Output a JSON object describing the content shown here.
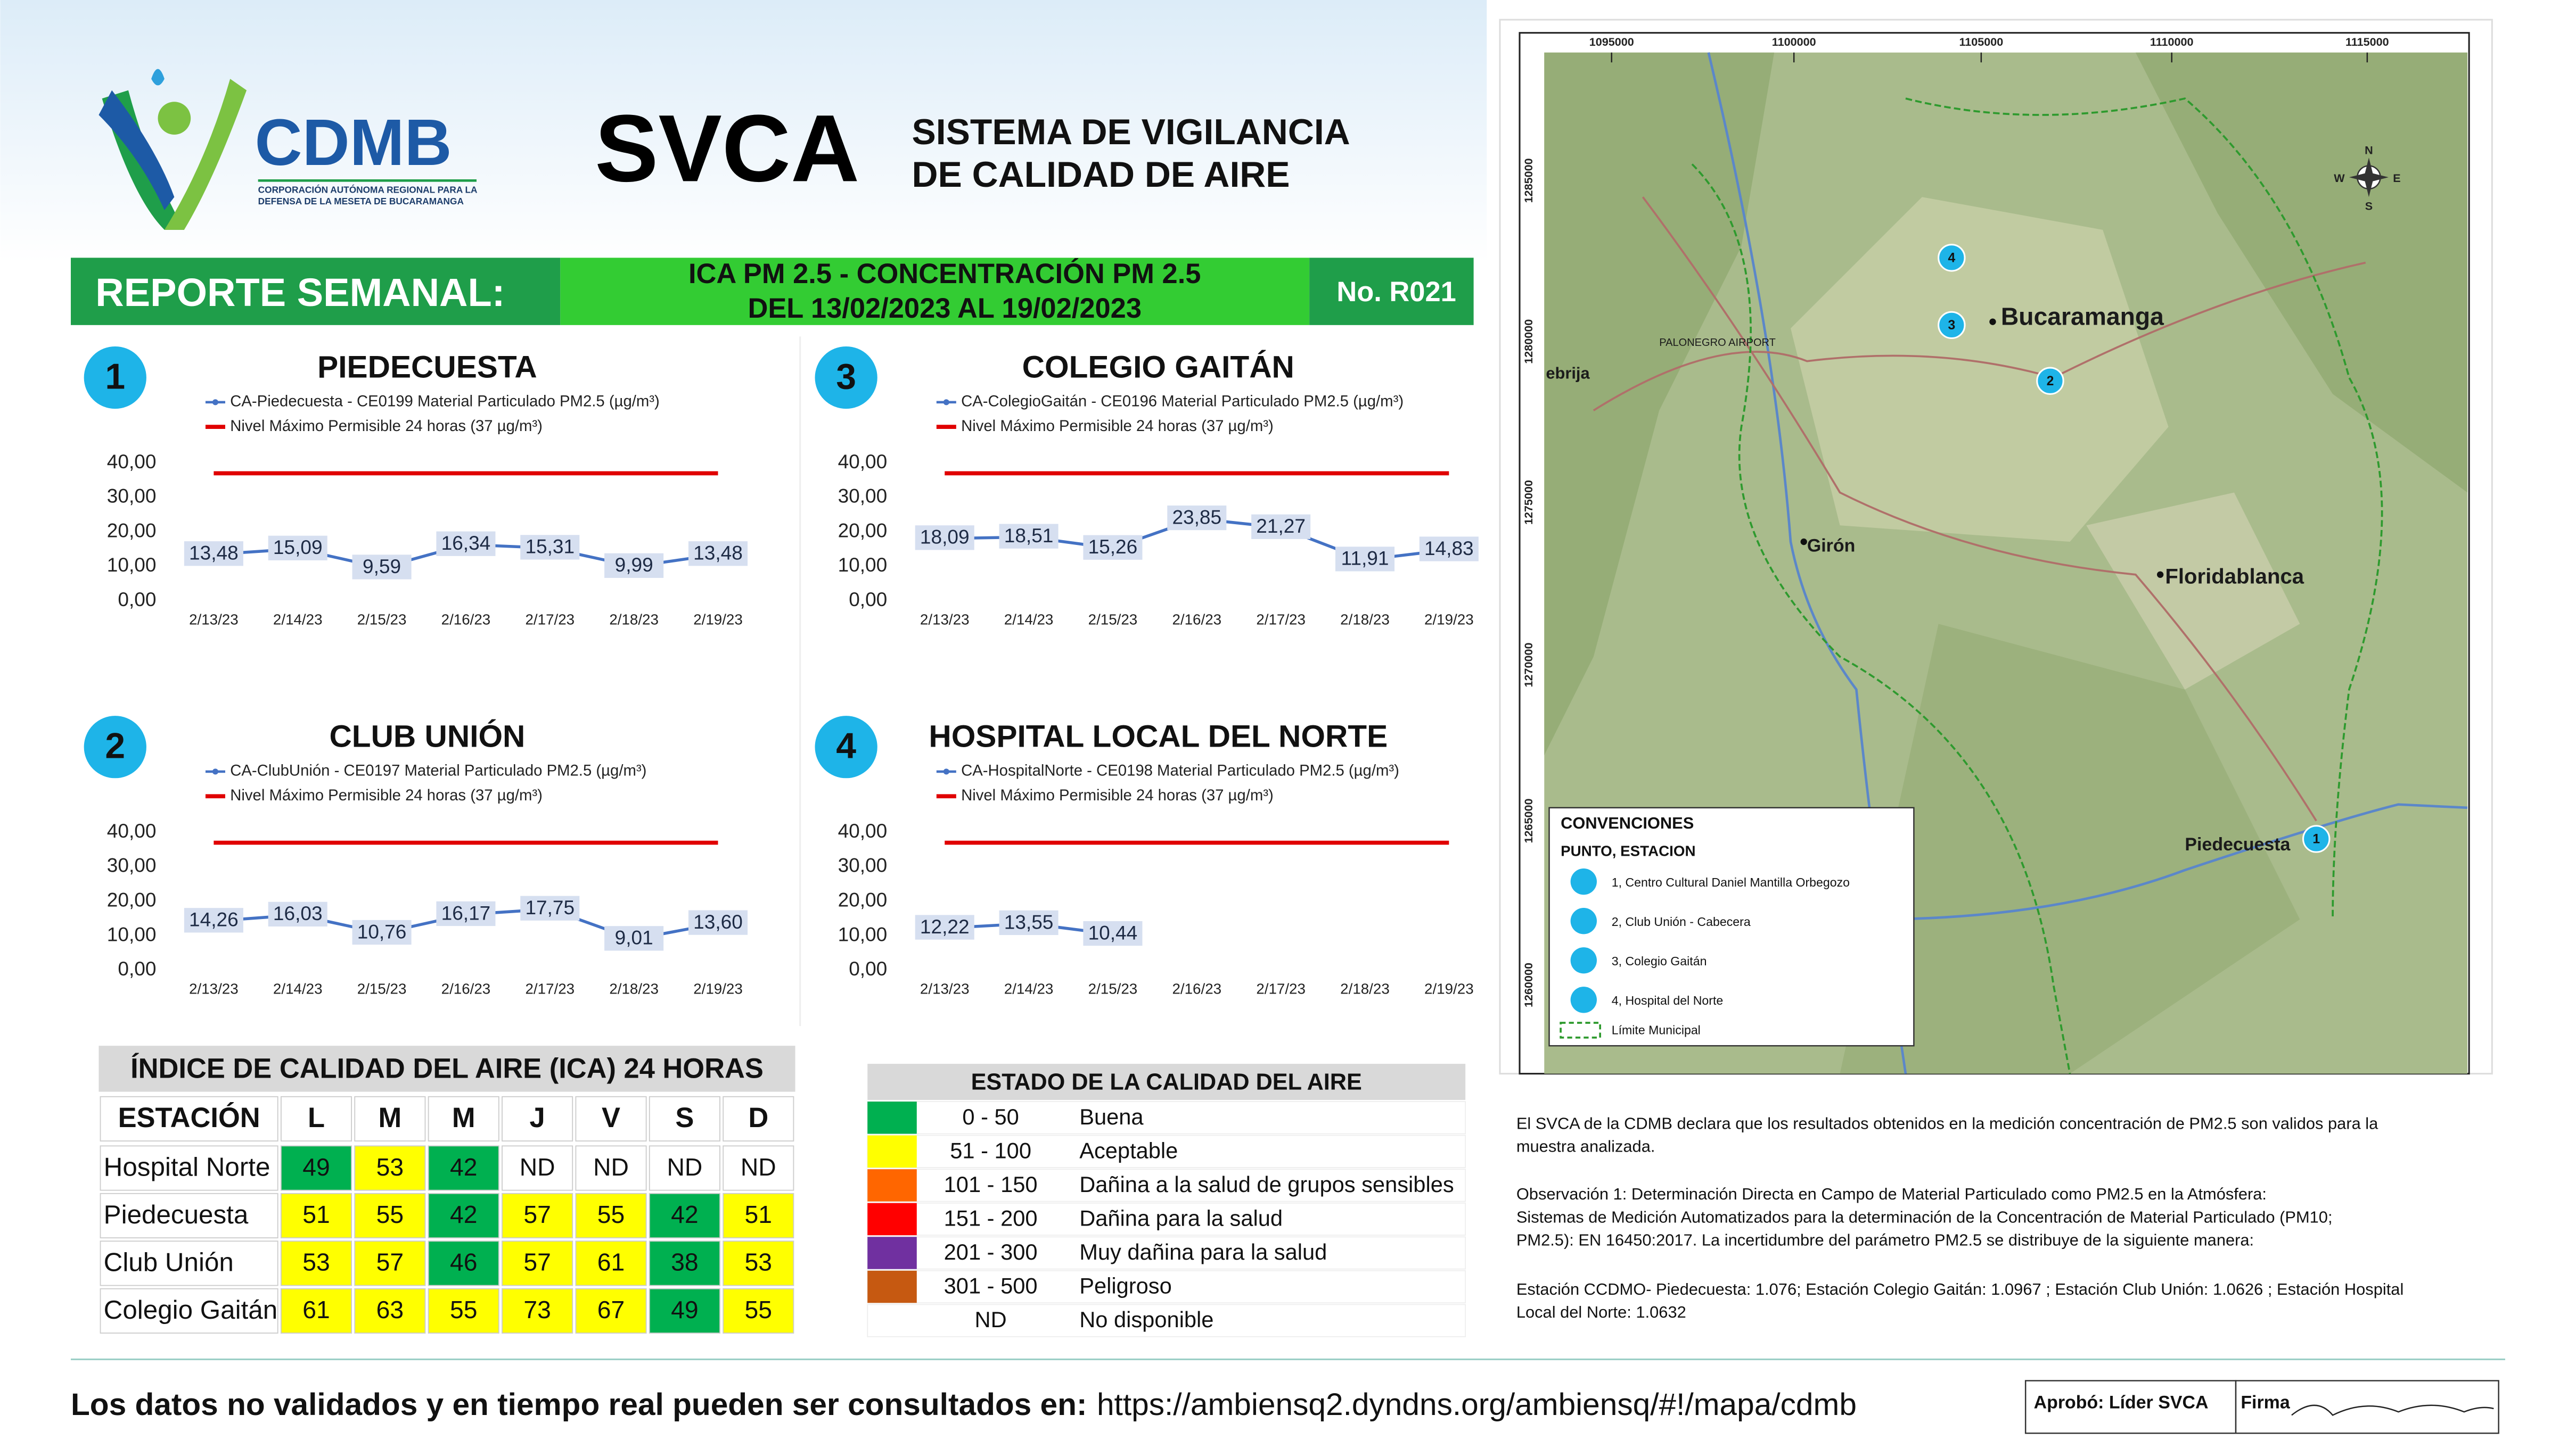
{
  "header": {
    "org": "CDMB",
    "org_subtitle_1": "CORPORACIÓN AUTÓNOMA REGIONAL PARA LA",
    "org_subtitle_2": "DEFENSA DE LA MESETA DE BUCARAMANGA",
    "title": "SVCA",
    "subtitle_1": "SISTEMA DE VIGILANCIA",
    "subtitle_2": "DE CALIDAD DE AIRE"
  },
  "banner": {
    "label": "REPORTE SEMANAL:",
    "line_1": "ICA PM 2.5 - CONCENTRACIÓN PM 2.5",
    "line_2": "DEL 13/02/2023 AL 19/02/2023",
    "number": "No. R021"
  },
  "chart_data": [
    {
      "type": "line",
      "number": "1",
      "title": "PIEDECUESTA",
      "categories": [
        "2/13/23",
        "2/14/23",
        "2/15/23",
        "2/16/23",
        "2/17/23",
        "2/18/23",
        "2/19/23"
      ],
      "series": [
        {
          "name": "CA-Piedecuesta - CE0199 Material Particulado PM2.5 (µg/m³)",
          "color": "#4472c4",
          "values": [
            13.48,
            15.09,
            9.59,
            16.34,
            15.31,
            9.99,
            13.48
          ],
          "value_labels": [
            "13,48",
            "15,09",
            "9,59",
            "16,34",
            "15,31",
            "9,99",
            "13,48"
          ]
        },
        {
          "name": "Nivel Máximo Permisible 24 horas (37 µg/m³)",
          "color": "#e00000",
          "values": [
            37,
            37,
            37,
            37,
            37,
            37,
            37
          ]
        }
      ],
      "ylim": [
        0,
        40
      ],
      "yticks": [
        {
          "value": 0,
          "label": "0,00"
        },
        {
          "value": 10,
          "label": "10,00"
        },
        {
          "value": 20,
          "label": "20,00"
        },
        {
          "value": 30,
          "label": "30,00"
        },
        {
          "value": 40,
          "label": "40,00"
        }
      ]
    },
    {
      "type": "line",
      "number": "2",
      "title": "CLUB UNIÓN",
      "categories": [
        "2/13/23",
        "2/14/23",
        "2/15/23",
        "2/16/23",
        "2/17/23",
        "2/18/23",
        "2/19/23"
      ],
      "series": [
        {
          "name": "CA-ClubUnión - CE0197 Material Particulado PM2.5 (µg/m³)",
          "color": "#4472c4",
          "values": [
            14.26,
            16.03,
            10.76,
            16.17,
            17.75,
            9.01,
            13.6
          ],
          "value_labels": [
            "14,26",
            "16,03",
            "10,76",
            "16,17",
            "17,75",
            "9,01",
            "13,60"
          ]
        },
        {
          "name": "Nivel Máximo Permisible 24 horas (37 µg/m³)",
          "color": "#e00000",
          "values": [
            37,
            37,
            37,
            37,
            37,
            37,
            37
          ]
        }
      ],
      "ylim": [
        0,
        40
      ],
      "yticks": [
        {
          "value": 0,
          "label": "0,00"
        },
        {
          "value": 10,
          "label": "10,00"
        },
        {
          "value": 20,
          "label": "20,00"
        },
        {
          "value": 30,
          "label": "30,00"
        },
        {
          "value": 40,
          "label": "40,00"
        }
      ]
    },
    {
      "type": "line",
      "number": "3",
      "title": "COLEGIO GAITÁN",
      "categories": [
        "2/13/23",
        "2/14/23",
        "2/15/23",
        "2/16/23",
        "2/17/23",
        "2/18/23",
        "2/19/23"
      ],
      "series": [
        {
          "name": "CA-ColegioGaitán - CE0196 Material Particulado PM2.5 (µg/m³)",
          "color": "#4472c4",
          "values": [
            18.09,
            18.51,
            15.26,
            23.85,
            21.27,
            11.91,
            14.83
          ],
          "value_labels": [
            "18,09",
            "18,51",
            "15,26",
            "23,85",
            "21,27",
            "11,91",
            "14,83"
          ]
        },
        {
          "name": "Nivel Máximo Permisible 24 horas (37 µg/m³)",
          "color": "#e00000",
          "values": [
            37,
            37,
            37,
            37,
            37,
            37,
            37
          ]
        }
      ],
      "ylim": [
        0,
        40
      ],
      "yticks": [
        {
          "value": 0,
          "label": "0,00"
        },
        {
          "value": 10,
          "label": "10,00"
        },
        {
          "value": 20,
          "label": "20,00"
        },
        {
          "value": 30,
          "label": "30,00"
        },
        {
          "value": 40,
          "label": "40,00"
        }
      ]
    },
    {
      "type": "line",
      "number": "4",
      "title": "HOSPITAL LOCAL DEL NORTE",
      "categories": [
        "2/13/23",
        "2/14/23",
        "2/15/23",
        "2/16/23",
        "2/17/23",
        "2/18/23",
        "2/19/23"
      ],
      "series": [
        {
          "name": "CA-HospitalNorte - CE0198 Material Particulado PM2.5 (µg/m³)",
          "color": "#4472c4",
          "values": [
            12.22,
            13.55,
            10.44,
            null,
            null,
            null,
            null
          ],
          "value_labels": [
            "12,22",
            "13,55",
            "10,44",
            null,
            null,
            null,
            null
          ]
        },
        {
          "name": "Nivel Máximo Permisible 24 horas (37 µg/m³)",
          "color": "#e00000",
          "values": [
            37,
            37,
            37,
            37,
            37,
            37,
            37
          ]
        }
      ],
      "ylim": [
        0,
        40
      ],
      "yticks": [
        {
          "value": 0,
          "label": "0,00"
        },
        {
          "value": 10,
          "label": "10,00"
        },
        {
          "value": 20,
          "label": "20,00"
        },
        {
          "value": 30,
          "label": "30,00"
        },
        {
          "value": 40,
          "label": "40,00"
        }
      ]
    }
  ],
  "ica_table": {
    "title": "ÍNDICE DE CALIDAD DEL AIRE (ICA) 24 HORAS",
    "columns": [
      "ESTACIÓN",
      "L",
      "M",
      "M",
      "J",
      "V",
      "S",
      "D"
    ],
    "rows": [
      [
        "Hospital Norte",
        "49",
        "53",
        "42",
        "ND",
        "ND",
        "ND",
        "ND"
      ],
      [
        "Piedecuesta",
        "51",
        "55",
        "42",
        "57",
        "55",
        "42",
        "51"
      ],
      [
        "Club Unión",
        "53",
        "57",
        "46",
        "57",
        "61",
        "38",
        "53"
      ],
      [
        "Colegio Gaitán",
        "61",
        "63",
        "55",
        "73",
        "67",
        "49",
        "55"
      ]
    ]
  },
  "quality_legend": {
    "title": "ESTADO DE LA CALIDAD DEL AIRE",
    "levels": [
      {
        "range": "0 - 50",
        "label": "Buena",
        "color": "#00b050"
      },
      {
        "range": "51 - 100",
        "label": "Aceptable",
        "color": "#ffff00"
      },
      {
        "range": "101 - 150",
        "label": "Dañina a la salud de grupos sensibles",
        "color": "#ff6600"
      },
      {
        "range": "151 - 200",
        "label": "Dañina para la salud",
        "color": "#ff0000"
      },
      {
        "range": "201 - 300",
        "label": "Muy dañina para la salud",
        "color": "#7030a0"
      },
      {
        "range": "301 - 500",
        "label": "Peligroso",
        "color": "#c65911"
      },
      {
        "range": "ND",
        "label": "No disponible"
      }
    ]
  },
  "map": {
    "x_labels": [
      "1095000",
      "1100000",
      "1105000",
      "1110000",
      "1115000"
    ],
    "y_labels": [
      "1285000",
      "1280000",
      "1275000",
      "1270000",
      "1265000",
      "1260000"
    ],
    "places": [
      "Bucaramanga",
      "Floridablanca",
      "Girón",
      "Piedecuesta",
      "ebrija",
      "PALONEGRO AIRPORT"
    ],
    "markers": [
      "1",
      "2",
      "3",
      "4"
    ],
    "compass": [
      "N",
      "S",
      "E",
      "W"
    ],
    "legend_title": "CONVENCIONES",
    "legend_subtitle": "PUNTO, ESTACION",
    "legend_items": [
      "1, Centro Cultural Daniel Mantilla Orbegozo",
      "2, Club Unión - Cabecera",
      "3, Colegio Gaitán",
      "4, Hospital del Norte"
    ],
    "legend_boundary": "Límite Municipal"
  },
  "notes": [
    "El SVCA  de la CDMB declara que los resultados obtenidos en la medición concentración de PM2.5 son validos para la",
    "muestra  analizada.",
    "Observación 1: Determinación Directa en Campo de Material Particulado como PM2.5 en la Atmósfera:",
    "Sistemas de Medición Automatizados para la  determinación de la Concentración de Material Particulado (PM10;",
    "PM2.5): EN 16450:2017. La incertidumbre del parámetro PM2.5 se distribuye de la siguiente manera:",
    "Estación CCDMO- Piedecuesta: 1.076; Estación Colegio Gaitán: 1.0967 ; Estación Club Unión: 1.0626 ; Estación Hospital",
    "Local del Norte: 1.0632"
  ],
  "footer": {
    "text": "Los datos no validados y en tiempo real pueden ser consultados en:",
    "url": "https://ambiensq2.dyndns.org/ambiensq/#!/mapa/cdmb",
    "approval": "Aprobó: Líder SVCA",
    "signature": "Firma"
  }
}
